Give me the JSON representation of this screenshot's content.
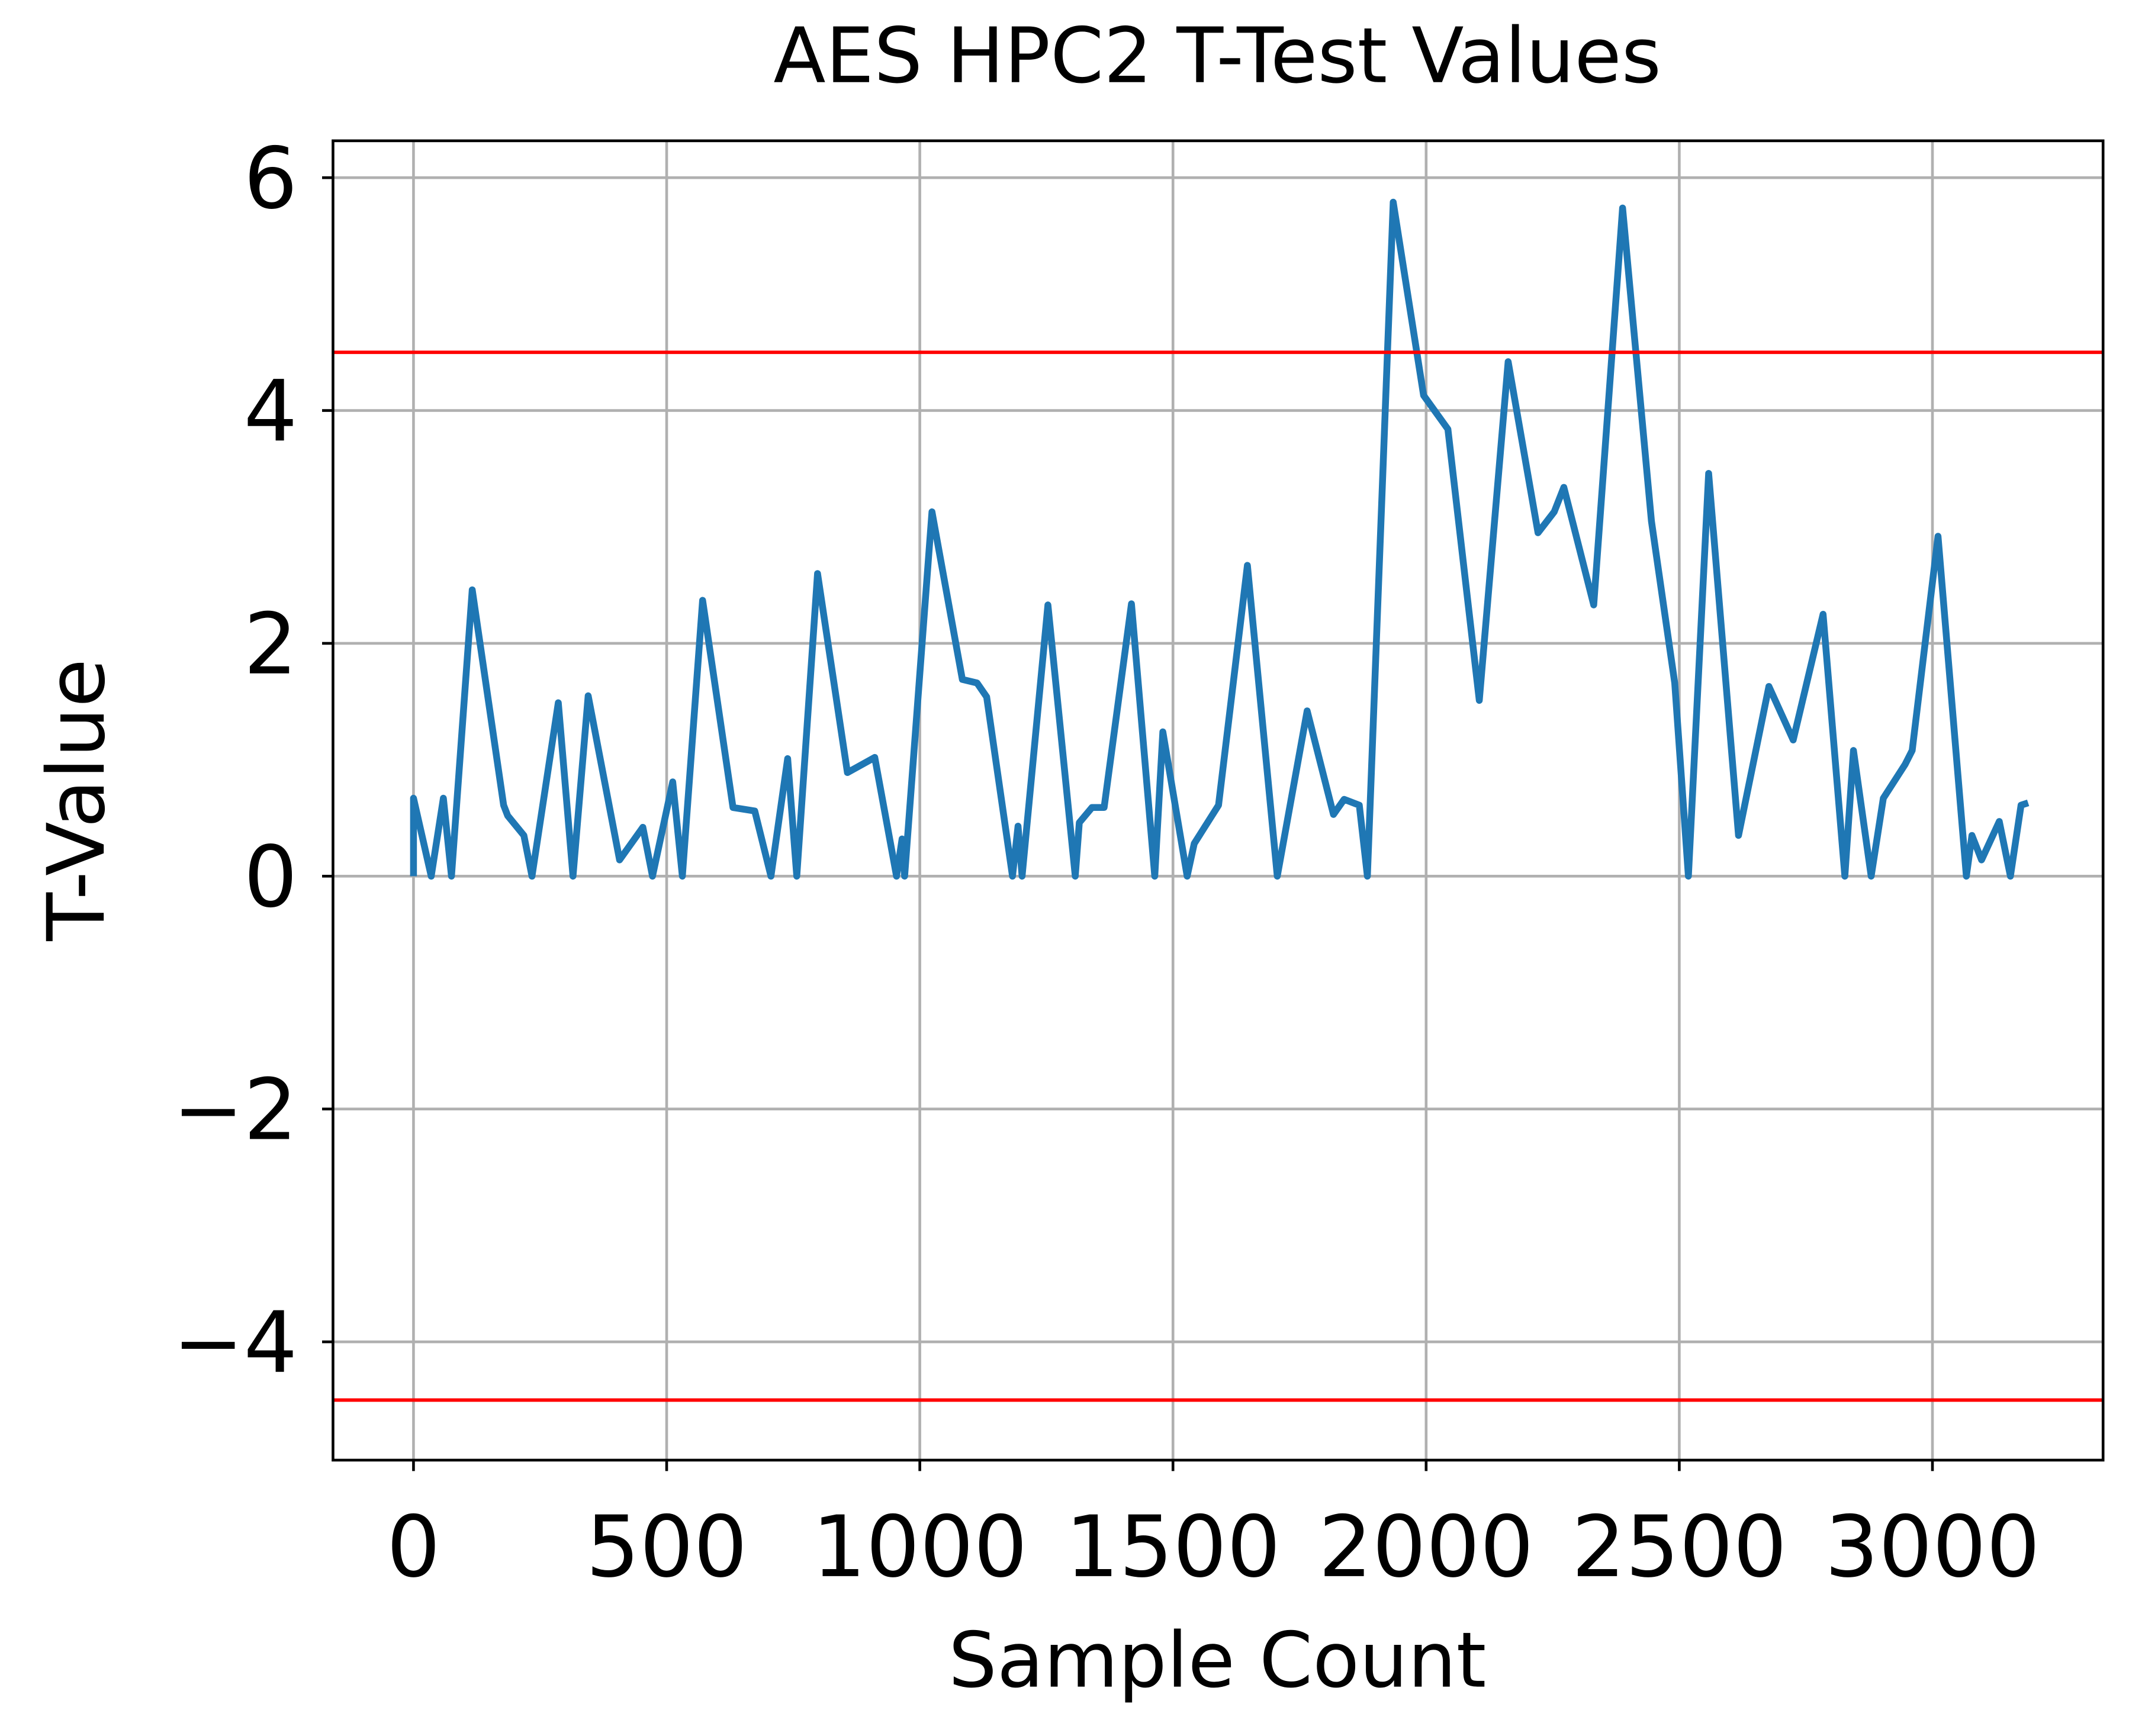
{
  "chart_data": {
    "type": "line",
    "title": "AES HPC2 T-Test Values",
    "x_label": "Sample Count",
    "y_label": "T-Value",
    "xlim": [
      -159,
      3337
    ],
    "ylim": [
      -5.016,
      6.317
    ],
    "xticks": [
      0,
      500,
      1000,
      1500,
      2000,
      2500,
      3000
    ],
    "yticks": [
      {
        "value": -4,
        "label": "−4"
      },
      {
        "value": -2,
        "label": "−2"
      },
      0,
      2,
      4,
      6
    ],
    "grid": true,
    "hlines": [
      {
        "value": 4.5,
        "color": "#ff0000"
      },
      {
        "value": -4.5,
        "color": "#ff0000"
      }
    ],
    "series": [
      {
        "color": "#1f77b4",
        "x": [
          0,
          0,
          35,
          59,
          75,
          116,
          178,
          186,
          218,
          234,
          286,
          315,
          345,
          407,
          453,
          472,
          512,
          531,
          571,
          631,
          674,
          706,
          739,
          757,
          798,
          857,
          911,
          954,
          965,
          970,
          1024,
          1084,
          1113,
          1132,
          1183,
          1194,
          1202,
          1253,
          1307,
          1315,
          1340,
          1364,
          1418,
          1464,
          1480,
          1528,
          1542,
          1590,
          1647,
          1706,
          1765,
          1817,
          1838,
          1868,
          1884,
          1935,
          1995,
          2043,
          2105,
          2162,
          2221,
          2253,
          2272,
          2331,
          2388,
          2445,
          2491,
          2518,
          2558,
          2617,
          2677,
          2725,
          2784,
          2827,
          2844,
          2879,
          2903,
          2946,
          2960,
          3011,
          3067,
          3078,
          3097,
          3132,
          3154,
          3175,
          3189
        ],
        "values": [
          0,
          0.67,
          0,
          0.67,
          0,
          2.46,
          0.61,
          0.52,
          0.35,
          0,
          1.49,
          0,
          1.55,
          0.14,
          0.42,
          0,
          0.81,
          0,
          2.37,
          0.59,
          0.56,
          0,
          1.01,
          0,
          2.6,
          0.89,
          1.02,
          0,
          0.32,
          0,
          3.13,
          1.69,
          1.66,
          1.54,
          0,
          0.43,
          0,
          2.33,
          0,
          0.46,
          0.59,
          0.59,
          2.34,
          0,
          1.24,
          0,
          0.28,
          0.61,
          2.67,
          0,
          1.42,
          0.53,
          0.66,
          0.61,
          0,
          5.79,
          4.13,
          3.84,
          1.51,
          4.42,
          2.95,
          3.13,
          3.34,
          2.33,
          5.74,
          3.05,
          1.66,
          0,
          3.46,
          0.35,
          1.63,
          1.17,
          2.25,
          0,
          1.08,
          0,
          0.67,
          0.96,
          1.08,
          2.92,
          0,
          0.35,
          0.14,
          0.47,
          0,
          0.61,
          0.63
        ]
      }
    ]
  }
}
